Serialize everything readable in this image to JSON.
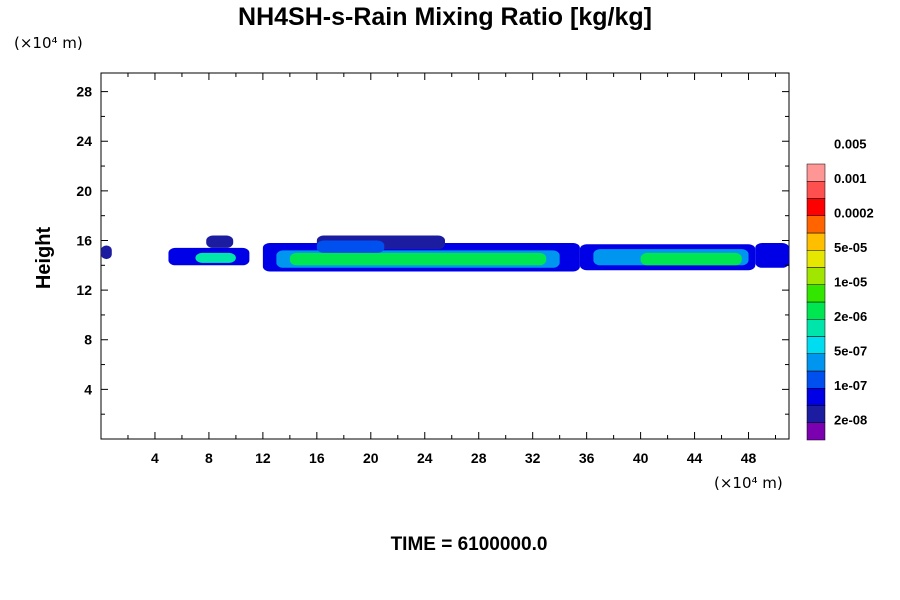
{
  "chart_data": {
    "type": "contour",
    "title": "NH4SH-s-Rain Mixing Ratio [kg/kg]",
    "xlabel": "",
    "ylabel": "Height",
    "x_unit": "(×10⁴ m)",
    "y_unit": "(×10⁴ m)",
    "xlim": [
      0,
      51
    ],
    "ylim": [
      0,
      29.5
    ],
    "x_ticks": [
      4,
      8,
      12,
      16,
      20,
      24,
      28,
      32,
      36,
      40,
      44,
      48
    ],
    "y_ticks": [
      4,
      8,
      12,
      16,
      20,
      24,
      28
    ],
    "time_label": "TIME = 6100000.0",
    "colorbar": {
      "colors": [
        "#7a00b0",
        "#1c1ca0",
        "#0000e6",
        "#0050f0",
        "#0096f0",
        "#00dcf0",
        "#00e6aa",
        "#00e650",
        "#32e600",
        "#a0e600",
        "#e6e600",
        "#ffbe00",
        "#ff6400",
        "#ff0000",
        "#ff5050",
        "#ff9696"
      ],
      "labels": [
        "2e-08",
        "1e-07",
        "5e-07",
        "2e-06",
        "1e-05",
        "5e-05",
        "0.0002",
        "0.001",
        "0.005"
      ]
    },
    "regions": [
      {
        "level": 1,
        "x": [
          0,
          0.8
        ],
        "y": [
          14.5,
          15.6
        ]
      },
      {
        "level": 2,
        "x": [
          5.0,
          11.0
        ],
        "y": [
          14.0,
          15.4
        ]
      },
      {
        "level": 1,
        "x": [
          7.8,
          9.8
        ],
        "y": [
          15.4,
          16.4
        ]
      },
      {
        "level": 2,
        "x": [
          12.0,
          35.5
        ],
        "y": [
          13.5,
          15.8
        ]
      },
      {
        "level": 1,
        "x": [
          16.0,
          25.5
        ],
        "y": [
          15.3,
          16.4
        ]
      },
      {
        "level": 4,
        "x": [
          13.0,
          34.0
        ],
        "y": [
          13.8,
          15.2
        ]
      },
      {
        "level": 7,
        "x": [
          14.0,
          33.0
        ],
        "y": [
          14.0,
          15.0
        ]
      },
      {
        "level": 3,
        "x": [
          16.0,
          21.0
        ],
        "y": [
          15.0,
          16.0
        ]
      },
      {
        "level": 2,
        "x": [
          35.5,
          48.5
        ],
        "y": [
          13.6,
          15.7
        ]
      },
      {
        "level": 4,
        "x": [
          36.5,
          48.0
        ],
        "y": [
          14.0,
          15.3
        ]
      },
      {
        "level": 7,
        "x": [
          40.0,
          47.5
        ],
        "y": [
          14.0,
          15.0
        ]
      },
      {
        "level": 2,
        "x": [
          48.5,
          51
        ],
        "y": [
          13.8,
          15.8
        ]
      },
      {
        "level": 6,
        "x": [
          7.0,
          10.0
        ],
        "y": [
          14.2,
          15.0
        ]
      }
    ]
  }
}
